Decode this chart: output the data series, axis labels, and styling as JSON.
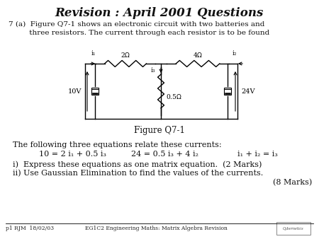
{
  "title": "Revision : April 2001 Questions",
  "background_color": "#ffffff",
  "footer_left": "p1 RJM  18/02/03",
  "footer_center": "EG1C2 Engineering Maths: Matrix Algebra Revision",
  "body_line1": "7 (a)  Figure Q7-1 shows an electronic circuit with two batteries and",
  "body_line2": "         three resistors. The current through each resistor is to be found",
  "figure_label": "Figure Q7-1",
  "equations_intro": "The following three equations relate these currents:",
  "eq1": "10 = 2 i₁ + 0.5 i₃",
  "eq2": "24 = 0.5 i₃ + 4 i₂",
  "eq3": "i₁ + i₂ = i₃",
  "part_i": "i)  Express these equations as one matrix equation.  (2 Marks)",
  "part_ii": "ii) Use Gaussian Elimination to find the values of the currents.",
  "marks": "(8 Marks)",
  "cL": 120,
  "cR": 335,
  "cT": 248,
  "cB": 170,
  "cM": 227
}
